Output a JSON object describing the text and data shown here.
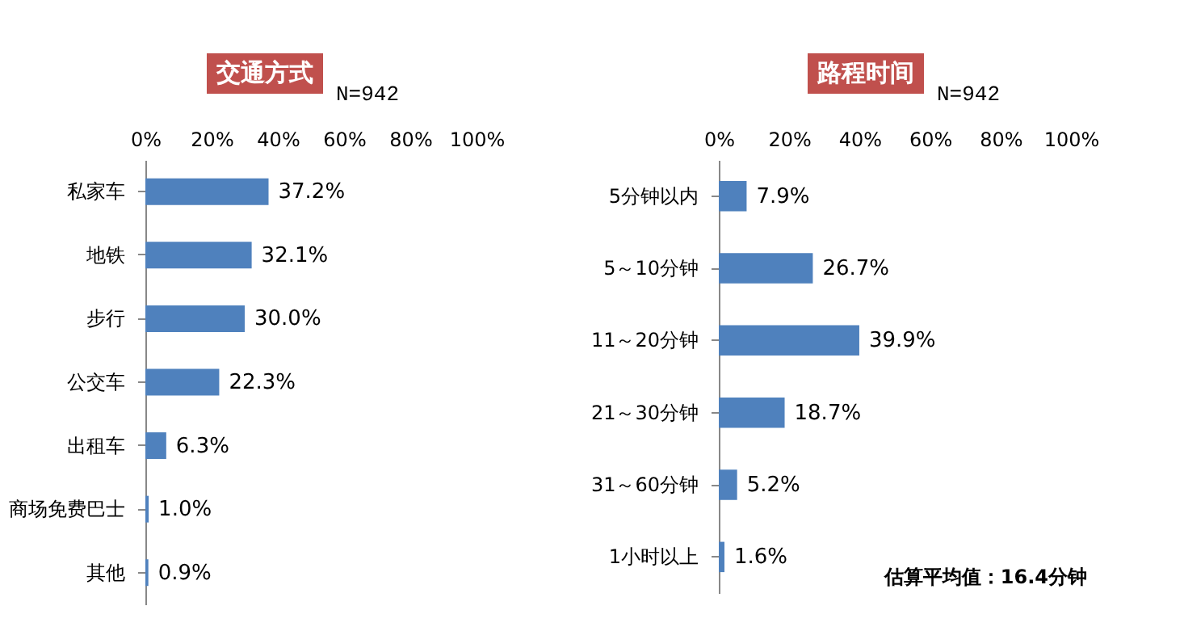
{
  "chart_data": [
    {
      "type": "bar",
      "orientation": "horizontal",
      "title": "交通方式",
      "subtitle": "N=942",
      "categories": [
        "私家车",
        "地铁",
        "步行",
        "公交车",
        "出租车",
        "商场免费巴士",
        "其他"
      ],
      "values": [
        37.2,
        32.1,
        30.0,
        22.3,
        6.3,
        1.0,
        0.9
      ],
      "value_labels": [
        "37.2%",
        "32.1%",
        "30.0%",
        "22.3%",
        "6.3%",
        "1.0%",
        "0.9%"
      ],
      "color": "#4f81bd",
      "xlim": [
        0,
        100
      ],
      "xticks": [
        {
          "value": 0,
          "label": "0%"
        },
        {
          "value": 20,
          "label": "20%"
        },
        {
          "value": 40,
          "label": "40%"
        },
        {
          "value": 60,
          "label": "60%"
        },
        {
          "value": 80,
          "label": "80%"
        },
        {
          "value": 100,
          "label": "100%"
        }
      ],
      "grid": false
    },
    {
      "type": "bar",
      "orientation": "horizontal",
      "title": "路程时间",
      "subtitle": "N=942",
      "categories": [
        "5分钟以内",
        "5～10分钟",
        "11～20分钟",
        "21～30分钟",
        "31～60分钟",
        "1小时以上"
      ],
      "values": [
        7.9,
        26.7,
        39.9,
        18.7,
        5.2,
        1.6
      ],
      "value_labels": [
        "7.9%",
        "26.7%",
        "39.9%",
        "18.7%",
        "5.2%",
        "1.6%"
      ],
      "color": "#4f81bd",
      "xlim": [
        0,
        100
      ],
      "xticks": [
        {
          "value": 0,
          "label": "0%"
        },
        {
          "value": 20,
          "label": "20%"
        },
        {
          "value": 40,
          "label": "40%"
        },
        {
          "value": 60,
          "label": "60%"
        },
        {
          "value": 80,
          "label": "80%"
        },
        {
          "value": 100,
          "label": "100%"
        }
      ],
      "grid": false,
      "annotations": [
        "估算平均值：16.4分钟"
      ]
    }
  ]
}
